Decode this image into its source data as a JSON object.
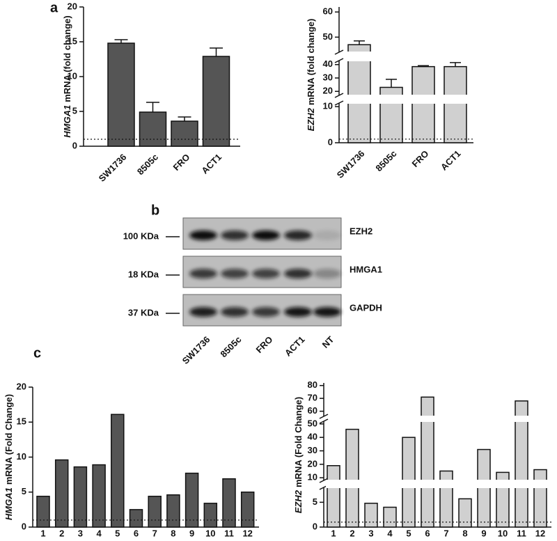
{
  "panels": [
    "a",
    "b",
    "c"
  ],
  "chart_data": [
    {
      "type": "bar",
      "ylabel_gene": "HMGA1",
      "ylabel": "mRNA (fold change)",
      "color": "#555555",
      "categories": [
        "SW1736",
        "8505c",
        "FRO",
        "ACT1"
      ],
      "values": [
        14.8,
        4.9,
        3.6,
        12.9
      ],
      "errors": [
        0.5,
        1.4,
        0.6,
        1.2
      ],
      "reference_line": 1,
      "ylim": [
        0,
        20
      ],
      "yticks": [
        0,
        5,
        10,
        15,
        20
      ]
    },
    {
      "type": "bar",
      "ylabel_gene": "EZH2",
      "ylabel": "mRNA (fold change)",
      "color": "#d0d0d0",
      "categories": [
        "SW1736",
        "8505c",
        "FRO",
        "ACT1"
      ],
      "values": [
        47,
        23,
        38.5,
        38.5
      ],
      "errors": [
        1.5,
        6,
        0.7,
        3
      ],
      "reference_line": 1,
      "segments": [
        {
          "ylim": [
            0,
            11
          ],
          "yticks": [
            0,
            10
          ]
        },
        {
          "ylim": [
            17,
            43
          ],
          "yticks": [
            20,
            30,
            40
          ]
        },
        {
          "ylim": [
            44,
            62
          ],
          "yticks": [
            50,
            60
          ]
        }
      ]
    },
    {
      "type": "bar",
      "ylabel_gene": "HMGA1",
      "ylabel": "mRNA (Fold Change)",
      "color": "#555555",
      "categories": [
        "1",
        "2",
        "3",
        "4",
        "5",
        "6",
        "7",
        "8",
        "9",
        "10",
        "11",
        "12"
      ],
      "values": [
        4.4,
        9.6,
        8.6,
        8.9,
        16.1,
        2.5,
        4.4,
        4.6,
        7.7,
        3.4,
        6.9,
        5.0
      ],
      "reference_line": 1,
      "ylim": [
        0,
        20
      ],
      "yticks": [
        0,
        5,
        10,
        15,
        20
      ]
    },
    {
      "type": "bar",
      "ylabel_gene": "EZH2",
      "ylabel": "mRNA (Fold Change)",
      "color": "#d0d0d0",
      "categories": [
        "1",
        "2",
        "3",
        "4",
        "5",
        "6",
        "7",
        "8",
        "9",
        "10",
        "11",
        "12"
      ],
      "values": [
        19,
        46,
        4.8,
        4.0,
        40,
        71,
        15,
        5.7,
        31,
        14,
        68,
        16
      ],
      "reference_line": 1,
      "segments": [
        {
          "ylim": [
            0,
            8
          ],
          "yticks": [
            0,
            5
          ]
        },
        {
          "ylim": [
            8,
            52
          ],
          "yticks": [
            10,
            20,
            30,
            40,
            50
          ]
        },
        {
          "ylim": [
            56,
            82
          ],
          "yticks": [
            60,
            70,
            80
          ]
        }
      ]
    }
  ],
  "blot": {
    "markers": [
      "100 KDa",
      "18 KDa",
      "37 KDa"
    ],
    "proteins": [
      "EZH2",
      "HMGA1",
      "GAPDH"
    ],
    "lanes": [
      "SW1736",
      "8505c",
      "FRO",
      "ACT1",
      "NT"
    ]
  }
}
